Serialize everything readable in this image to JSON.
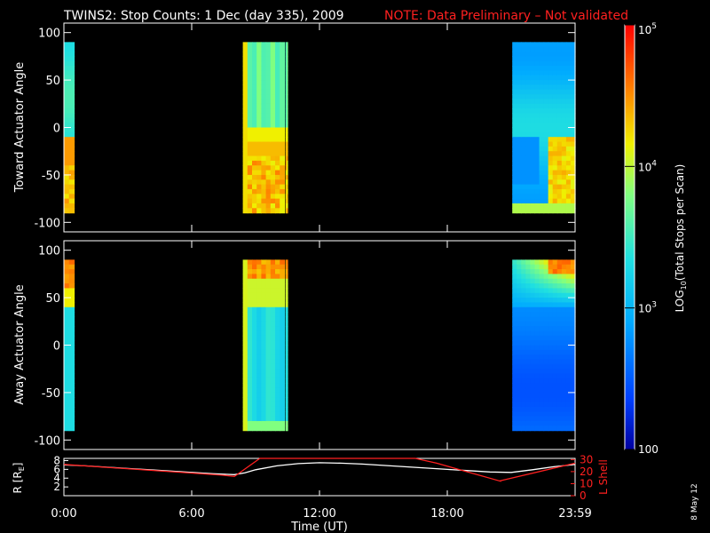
{
  "title": {
    "main": "TWINS2: Stop Counts:  1 Dec (day 335), 2009",
    "note": "NOTE: Data Preliminary – Not validated",
    "note_color": "#ff2020"
  },
  "date_stamp": "8 May 12",
  "colorbar": {
    "label": "LOG10(Total Stops per Scan)",
    "label_prefix": "LOG",
    "label_sub": "10",
    "label_suffix": "(Total Stops per Scan)",
    "ticks": [
      {
        "base": "10",
        "exp": "5",
        "value": 100000
      },
      {
        "base": "10",
        "exp": "4",
        "value": 10000
      },
      {
        "base": "10",
        "exp": "3",
        "value": 1000
      },
      {
        "base": "100",
        "exp": "",
        "value": 100
      }
    ],
    "range": [
      100,
      100000
    ],
    "scale": "log",
    "colormap": "rainbow (blue to red)"
  },
  "chart_data": [
    {
      "type": "heatmap",
      "ylabel": "Toward Actuator Angle",
      "y_ticks": [
        "100",
        "50",
        "0",
        "-50",
        "-100"
      ],
      "ylim": [
        -110,
        110
      ],
      "y_extent": [
        -90,
        90
      ],
      "xlim": [
        0,
        24
      ],
      "x_unit": "hours UT",
      "data_blocks": [
        {
          "start": 0.0,
          "end": 0.48,
          "profile": "toward_a"
        },
        {
          "start": 8.4,
          "end": 10.35,
          "profile": "toward_b"
        },
        {
          "start": 10.4,
          "end": 10.5,
          "profile": "toward_b"
        },
        {
          "start": 21.05,
          "end": 24.0,
          "profile": "toward_c"
        }
      ]
    },
    {
      "type": "heatmap",
      "ylabel": "Away Actuator Angle",
      "y_ticks": [
        "100",
        "50",
        "0",
        "-50",
        "-100"
      ],
      "ylim": [
        -110,
        110
      ],
      "y_extent": [
        -90,
        90
      ],
      "xlim": [
        0,
        24
      ],
      "x_unit": "hours UT",
      "data_blocks": [
        {
          "start": 0.0,
          "end": 0.48,
          "profile": "away_a"
        },
        {
          "start": 8.4,
          "end": 10.35,
          "profile": "away_b"
        },
        {
          "start": 10.4,
          "end": 10.5,
          "profile": "away_b"
        },
        {
          "start": 21.05,
          "end": 24.0,
          "profile": "away_c"
        }
      ]
    },
    {
      "type": "line",
      "ylabel_left": "R [RE]",
      "ylabel_left_prefix": "R [R",
      "ylabel_left_sub": "E",
      "ylabel_left_suffix": "]",
      "ylabel_right": "L Shell",
      "xlabel": "Time (UT)",
      "x_ticks": [
        "0:00",
        "6:00",
        "12:00",
        "18:00",
        "23:59"
      ],
      "x_tick_values": [
        0,
        6,
        12,
        18,
        24
      ],
      "xlim": [
        0,
        24
      ],
      "y_left_ticks": [
        "8",
        "6",
        "4",
        "2"
      ],
      "ylim_left": [
        0,
        8.5
      ],
      "y_right_ticks": [
        "30",
        "20",
        "10",
        "0"
      ],
      "ylim_right": [
        0,
        31
      ],
      "series": [
        {
          "axis": "left",
          "color": "#ffffff",
          "x": [
            0,
            1,
            2,
            3,
            4,
            5,
            6,
            7,
            7.5,
            8,
            8.5,
            9,
            10,
            11,
            12,
            13,
            14,
            15,
            16,
            17,
            18,
            19,
            20,
            21,
            22,
            23,
            24
          ],
          "y": [
            7.0,
            6.8,
            6.5,
            6.2,
            5.9,
            5.6,
            5.3,
            5.0,
            4.9,
            4.8,
            5.2,
            5.9,
            6.8,
            7.3,
            7.5,
            7.4,
            7.2,
            6.9,
            6.6,
            6.3,
            6.0,
            5.7,
            5.4,
            5.3,
            5.9,
            6.6,
            7.1
          ]
        },
        {
          "axis": "right",
          "color": "#ff2020",
          "x": [
            0,
            7.5,
            8.0,
            8.05,
            9.2,
            16.5,
            17.5,
            20.5,
            20.5,
            24
          ],
          "y": [
            26,
            17,
            16,
            16.5,
            31,
            31,
            27,
            12,
            12.5,
            27
          ]
        }
      ]
    }
  ]
}
